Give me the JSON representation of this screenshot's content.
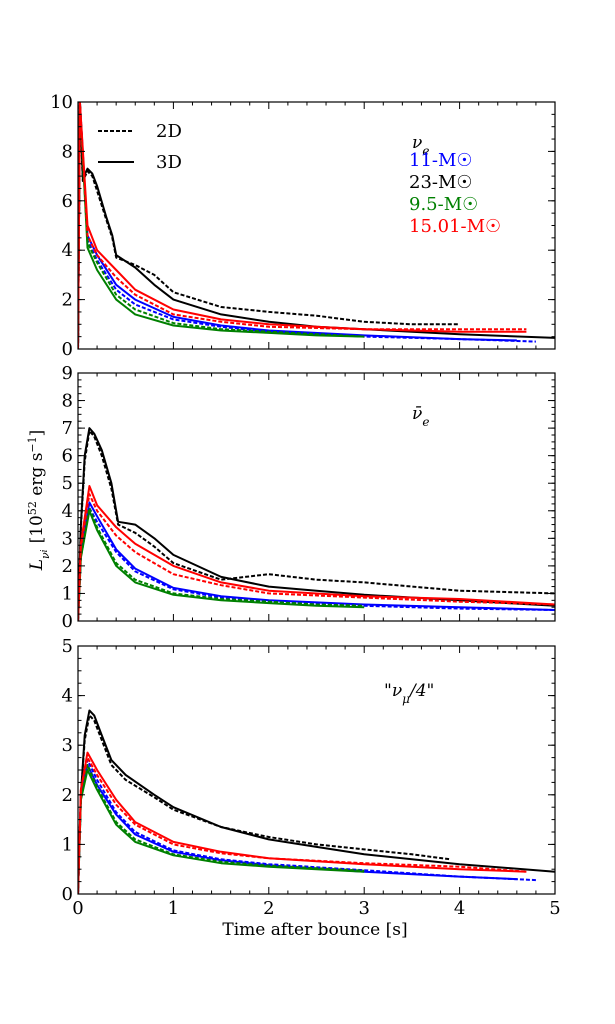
{
  "figure": {
    "xlabel": "Time after bounce [s]",
    "ylabel": "L_{ν_i} [10^{52} erg s^{-1}]",
    "legend_styles": [
      {
        "label": "2D",
        "dash": "dashed"
      },
      {
        "label": "3D",
        "dash": "solid"
      }
    ],
    "legend_models": [
      {
        "label": "11-M☉",
        "color": "#0000ff"
      },
      {
        "label": "23-M☉",
        "color": "#000000"
      },
      {
        "label": "9.5-M☉",
        "color": "#008000"
      },
      {
        "label": "15.01-M☉",
        "color": "#ff0000"
      }
    ]
  },
  "chart_data": [
    {
      "type": "line",
      "annotation": "ν_e",
      "xlim": [
        0,
        5
      ],
      "ylim": [
        0,
        10
      ],
      "xticks": [
        0,
        1,
        2,
        3,
        4,
        5
      ],
      "yticks": [
        0,
        2,
        4,
        6,
        8,
        10
      ],
      "series": [
        {
          "model": "23-M☉",
          "dim": "3D",
          "color": "#000000",
          "x": [
            0,
            0.02,
            0.05,
            0.1,
            0.15,
            0.2,
            0.3,
            0.36,
            0.4,
            0.6,
            0.8,
            1,
            1.5,
            2,
            2.5,
            3,
            4,
            5
          ],
          "y": [
            0,
            10,
            6.9,
            7.3,
            7.1,
            6.6,
            5.3,
            4.6,
            3.8,
            3.3,
            2.6,
            2.0,
            1.4,
            1.1,
            0.9,
            0.8,
            0.6,
            0.45
          ]
        },
        {
          "model": "23-M☉",
          "dim": "2D",
          "color": "#000000",
          "x": [
            0,
            0.02,
            0.05,
            0.1,
            0.15,
            0.2,
            0.3,
            0.36,
            0.4,
            0.6,
            0.8,
            1,
            1.5,
            2,
            2.5,
            3,
            3.5,
            4
          ],
          "y": [
            0,
            10,
            6.8,
            7.2,
            7.0,
            6.4,
            5.2,
            4.5,
            3.7,
            3.4,
            3.0,
            2.3,
            1.7,
            1.5,
            1.35,
            1.1,
            1.0,
            1.0
          ]
        },
        {
          "model": "11-M☉",
          "dim": "3D",
          "color": "#0000ff",
          "x": [
            0,
            0.02,
            0.1,
            0.2,
            0.4,
            0.6,
            1,
            1.5,
            2,
            3,
            4,
            4.6
          ],
          "y": [
            0,
            10,
            4.6,
            3.8,
            2.6,
            2.0,
            1.3,
            0.95,
            0.75,
            0.55,
            0.4,
            0.35
          ]
        },
        {
          "model": "11-M☉",
          "dim": "2D",
          "color": "#0000ff",
          "x": [
            0,
            0.02,
            0.1,
            0.2,
            0.4,
            0.6,
            1,
            1.5,
            2,
            3,
            4,
            4.8
          ],
          "y": [
            0,
            10,
            4.4,
            3.6,
            2.4,
            1.8,
            1.2,
            0.9,
            0.7,
            0.5,
            0.4,
            0.3
          ]
        },
        {
          "model": "9.5-M☉",
          "dim": "3D",
          "color": "#008000",
          "x": [
            0,
            0.02,
            0.1,
            0.2,
            0.4,
            0.6,
            1,
            1.5,
            2,
            2.5,
            3
          ],
          "y": [
            0,
            10,
            4.1,
            3.2,
            2.0,
            1.4,
            0.95,
            0.75,
            0.65,
            0.55,
            0.5
          ]
        },
        {
          "model": "9.5-M☉",
          "dim": "2D",
          "color": "#008000",
          "x": [
            0,
            0.02,
            0.1,
            0.2,
            0.4,
            0.6,
            1,
            1.5,
            2,
            2.5,
            3
          ],
          "y": [
            0,
            10,
            4.3,
            3.5,
            2.2,
            1.6,
            1.05,
            0.8,
            0.7,
            0.6,
            0.5
          ]
        },
        {
          "model": "15.01-M☉",
          "dim": "3D",
          "color": "#ff0000",
          "x": [
            0,
            0.02,
            0.1,
            0.2,
            0.4,
            0.6,
            1,
            1.5,
            2,
            3,
            4,
            4.7
          ],
          "y": [
            0,
            10,
            5.0,
            4.0,
            3.2,
            2.4,
            1.6,
            1.2,
            1.0,
            0.8,
            0.7,
            0.7
          ]
        },
        {
          "model": "15.01-M☉",
          "dim": "2D",
          "color": "#ff0000",
          "x": [
            0,
            0.02,
            0.1,
            0.2,
            0.4,
            0.6,
            1,
            1.5,
            2,
            3,
            4,
            4.7
          ],
          "y": [
            0,
            10,
            4.6,
            3.8,
            2.9,
            2.2,
            1.4,
            1.1,
            0.9,
            0.8,
            0.8,
            0.8
          ]
        }
      ]
    },
    {
      "type": "line",
      "annotation": "ν̄_e",
      "xlim": [
        0,
        5
      ],
      "ylim": [
        0,
        9
      ],
      "xticks": [
        0,
        1,
        2,
        3,
        4,
        5
      ],
      "yticks": [
        0,
        1,
        2,
        3,
        4,
        5,
        6,
        7,
        8,
        9
      ],
      "series": [
        {
          "model": "23-M☉",
          "dim": "3D",
          "color": "#000000",
          "x": [
            0,
            0.03,
            0.07,
            0.12,
            0.17,
            0.25,
            0.35,
            0.42,
            0.6,
            0.8,
            1,
            1.5,
            2,
            2.5,
            3,
            4,
            5
          ],
          "y": [
            0,
            3.5,
            6.0,
            7.0,
            6.8,
            6.2,
            5.0,
            3.6,
            3.5,
            3.0,
            2.4,
            1.6,
            1.25,
            1.1,
            0.95,
            0.75,
            0.55
          ]
        },
        {
          "model": "23-M☉",
          "dim": "2D",
          "color": "#000000",
          "x": [
            0,
            0.03,
            0.07,
            0.12,
            0.17,
            0.25,
            0.35,
            0.42,
            0.6,
            0.8,
            1,
            1.5,
            2,
            2.5,
            3,
            4,
            5
          ],
          "y": [
            0,
            3.4,
            5.8,
            6.9,
            6.7,
            6.0,
            4.8,
            3.5,
            3.2,
            2.7,
            2.1,
            1.5,
            1.7,
            1.5,
            1.4,
            1.1,
            1.0
          ]
        },
        {
          "model": "11-M☉",
          "dim": "3D",
          "color": "#0000ff",
          "x": [
            0,
            0.03,
            0.12,
            0.2,
            0.4,
            0.6,
            1,
            1.5,
            2,
            3,
            4,
            5
          ],
          "y": [
            0,
            2.5,
            4.3,
            3.8,
            2.6,
            1.9,
            1.2,
            0.9,
            0.75,
            0.6,
            0.5,
            0.4
          ]
        },
        {
          "model": "11-M☉",
          "dim": "2D",
          "color": "#0000ff",
          "x": [
            0,
            0.03,
            0.12,
            0.2,
            0.4,
            0.6,
            1,
            1.5,
            2,
            3,
            4,
            5
          ],
          "y": [
            0,
            2.5,
            4.1,
            3.6,
            2.5,
            1.8,
            1.15,
            0.85,
            0.7,
            0.55,
            0.45,
            0.4
          ]
        },
        {
          "model": "9.5-M☉",
          "dim": "3D",
          "color": "#008000",
          "x": [
            0,
            0.03,
            0.12,
            0.2,
            0.4,
            0.6,
            1,
            1.5,
            2,
            2.5,
            3
          ],
          "y": [
            0,
            2.3,
            4.0,
            3.3,
            2.0,
            1.4,
            0.95,
            0.75,
            0.65,
            0.55,
            0.5
          ]
        },
        {
          "model": "9.5-M☉",
          "dim": "2D",
          "color": "#008000",
          "x": [
            0,
            0.03,
            0.12,
            0.2,
            0.4,
            0.6,
            1,
            1.5,
            2,
            2.5,
            3
          ],
          "y": [
            0,
            2.3,
            4.1,
            3.4,
            2.1,
            1.5,
            1.0,
            0.8,
            0.7,
            0.6,
            0.55
          ]
        },
        {
          "model": "15.01-M☉",
          "dim": "3D",
          "color": "#ff0000",
          "x": [
            0,
            0.03,
            0.12,
            0.2,
            0.4,
            0.6,
            1,
            1.5,
            2,
            3,
            4,
            5
          ],
          "y": [
            0,
            2.8,
            4.9,
            4.2,
            3.4,
            2.8,
            2.0,
            1.4,
            1.1,
            0.9,
            0.8,
            0.6
          ]
        },
        {
          "model": "15.01-M☉",
          "dim": "2D",
          "color": "#ff0000",
          "x": [
            0,
            0.03,
            0.12,
            0.2,
            0.4,
            0.6,
            1,
            1.5,
            2,
            3,
            4,
            5
          ],
          "y": [
            0,
            2.7,
            4.6,
            4.0,
            3.1,
            2.5,
            1.7,
            1.3,
            1.0,
            0.85,
            0.7,
            0.6
          ]
        }
      ]
    },
    {
      "type": "line",
      "annotation": "\"ν_μ/4\"",
      "xlim": [
        0,
        5
      ],
      "ylim": [
        0,
        5
      ],
      "xticks": [
        0,
        1,
        2,
        3,
        4,
        5
      ],
      "yticks": [
        0,
        1,
        2,
        3,
        4,
        5
      ],
      "series": [
        {
          "model": "23-M☉",
          "dim": "3D",
          "color": "#000000",
          "x": [
            0,
            0.03,
            0.07,
            0.12,
            0.17,
            0.25,
            0.35,
            0.5,
            0.8,
            1,
            1.5,
            2,
            2.5,
            3,
            4,
            5
          ],
          "y": [
            0,
            2.0,
            3.2,
            3.7,
            3.6,
            3.2,
            2.7,
            2.4,
            2.0,
            1.75,
            1.35,
            1.1,
            0.95,
            0.8,
            0.6,
            0.45
          ]
        },
        {
          "model": "23-M☉",
          "dim": "2D",
          "color": "#000000",
          "x": [
            0,
            0.03,
            0.07,
            0.12,
            0.17,
            0.25,
            0.35,
            0.5,
            0.8,
            1,
            1.5,
            2,
            2.5,
            3,
            3.5,
            3.9
          ],
          "y": [
            0,
            2.0,
            3.1,
            3.6,
            3.5,
            3.1,
            2.6,
            2.3,
            1.95,
            1.7,
            1.35,
            1.15,
            1.0,
            0.9,
            0.8,
            0.7
          ]
        },
        {
          "model": "11-M☉",
          "dim": "3D",
          "color": "#0000ff",
          "x": [
            0,
            0.03,
            0.1,
            0.2,
            0.4,
            0.6,
            1,
            1.5,
            2,
            3,
            4,
            4.6
          ],
          "y": [
            0,
            2.0,
            2.6,
            2.2,
            1.6,
            1.2,
            0.85,
            0.68,
            0.58,
            0.45,
            0.35,
            0.3
          ]
        },
        {
          "model": "11-M☉",
          "dim": "2D",
          "color": "#0000ff",
          "x": [
            0,
            0.03,
            0.1,
            0.2,
            0.4,
            0.6,
            1,
            1.5,
            2,
            3,
            4,
            4.8
          ],
          "y": [
            0,
            2.0,
            2.7,
            2.3,
            1.65,
            1.25,
            0.88,
            0.7,
            0.6,
            0.48,
            0.35,
            0.28
          ]
        },
        {
          "model": "9.5-M☉",
          "dim": "3D",
          "color": "#008000",
          "x": [
            0,
            0.03,
            0.1,
            0.2,
            0.4,
            0.6,
            1,
            1.5,
            2,
            2.5,
            3
          ],
          "y": [
            0,
            1.9,
            2.5,
            2.1,
            1.4,
            1.05,
            0.78,
            0.62,
            0.55,
            0.5,
            0.45
          ]
        },
        {
          "model": "9.5-M☉",
          "dim": "2D",
          "color": "#008000",
          "x": [
            0,
            0.03,
            0.1,
            0.2,
            0.4,
            0.6,
            1,
            1.5,
            2,
            2.5,
            3
          ],
          "y": [
            0,
            1.9,
            2.6,
            2.15,
            1.45,
            1.1,
            0.8,
            0.65,
            0.57,
            0.52,
            0.47
          ]
        },
        {
          "model": "15.01-M☉",
          "dim": "3D",
          "color": "#ff0000",
          "x": [
            0,
            0.03,
            0.1,
            0.2,
            0.4,
            0.6,
            1,
            1.5,
            2,
            3,
            4,
            4.7
          ],
          "y": [
            0,
            2.1,
            2.85,
            2.5,
            1.9,
            1.45,
            1.05,
            0.85,
            0.72,
            0.6,
            0.5,
            0.45
          ]
        },
        {
          "model": "15.01-M☉",
          "dim": "2D",
          "color": "#ff0000",
          "x": [
            0,
            0.03,
            0.1,
            0.2,
            0.4,
            0.6,
            1,
            1.5,
            2,
            3,
            4,
            4.7
          ],
          "y": [
            0,
            2.1,
            2.75,
            2.4,
            1.8,
            1.4,
            1.0,
            0.82,
            0.72,
            0.62,
            0.55,
            0.45
          ]
        }
      ]
    }
  ]
}
